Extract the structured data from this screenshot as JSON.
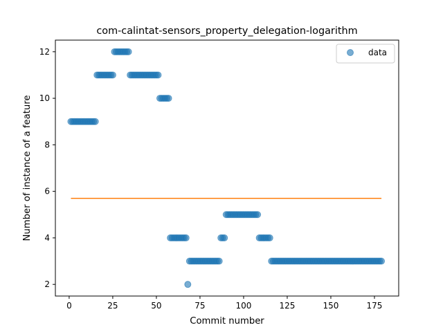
{
  "chart_data": {
    "type": "scatter",
    "title": "com-calintat-sensors_property_delegation-logarithm",
    "xlabel": "Commit number",
    "ylabel": "Number of instance of a feature",
    "xlim": [
      -7.9,
      188.9
    ],
    "ylim": [
      1.5,
      12.5
    ],
    "xticks": [
      0,
      25,
      50,
      75,
      100,
      125,
      150,
      175
    ],
    "yticks": [
      2,
      4,
      6,
      8,
      10,
      12
    ],
    "legend": {
      "position": "top-right",
      "entries": [
        "data"
      ]
    },
    "colors": {
      "data": "#1f77b4",
      "fit_line": "#ff7f0e"
    },
    "series": [
      {
        "name": "data",
        "kind": "scatter",
        "runs": [
          {
            "x_start": 1,
            "x_end": 15,
            "y": 9
          },
          {
            "x_start": 16,
            "x_end": 25,
            "y": 11
          },
          {
            "x_start": 26,
            "x_end": 34,
            "y": 12
          },
          {
            "x_start": 35,
            "x_end": 51,
            "y": 11
          },
          {
            "x_start": 52,
            "x_end": 57,
            "y": 10
          },
          {
            "x_start": 58,
            "x_end": 67,
            "y": 4
          },
          {
            "x_start": 68,
            "x_end": 68,
            "y": 2
          },
          {
            "x_start": 69,
            "x_end": 86,
            "y": 3
          },
          {
            "x_start": 87,
            "x_end": 89,
            "y": 4
          },
          {
            "x_start": 90,
            "x_end": 108,
            "y": 5
          },
          {
            "x_start": 109,
            "x_end": 115,
            "y": 4
          },
          {
            "x_start": 116,
            "x_end": 179,
            "y": 3
          }
        ]
      },
      {
        "kind": "line",
        "x": [
          1,
          179
        ],
        "y": [
          5.7,
          5.7
        ]
      }
    ]
  }
}
